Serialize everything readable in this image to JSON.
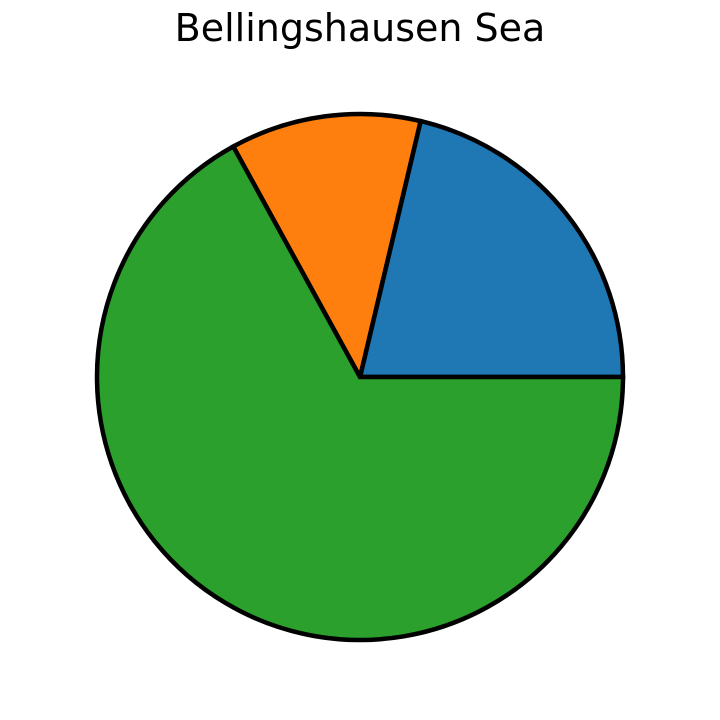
{
  "chart_data": {
    "type": "pie",
    "title": "Bellingshausen Sea",
    "start_angle_deg": 0,
    "direction": "counterclockwise",
    "edge_color": "#000000",
    "slices": [
      {
        "value": 21.3,
        "color": "#1f77b4"
      },
      {
        "value": 11.7,
        "color": "#ff7f0e"
      },
      {
        "value": 67.0,
        "color": "#2ca02c"
      }
    ]
  }
}
